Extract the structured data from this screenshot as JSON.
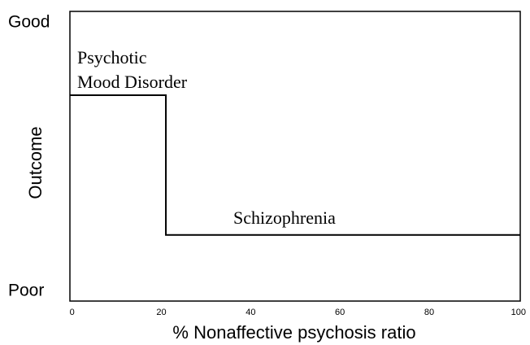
{
  "chart_data": {
    "type": "line",
    "x": [
      -0.5,
      21,
      21,
      100.4
    ],
    "series": [
      {
        "color": "#000000",
        "values": [
          0.73,
          0.73,
          0.21,
          0.21
        ]
      }
    ],
    "xlim": [
      -0.5,
      100.4
    ],
    "xticks": [
      0,
      20,
      40,
      60,
      80,
      100
    ],
    "ylim": [
      -0.036,
      1.042
    ],
    "yticks": [
      {
        "value": 1,
        "label": "Good"
      },
      {
        "value": 0,
        "label": "Poor"
      }
    ],
    "xlabel": "% Nonaffective psychosis ratio",
    "ylabel": "Outcome",
    "annotations": [
      "Psychotic",
      "Mood Disorder",
      "Schizophrenia"
    ]
  }
}
